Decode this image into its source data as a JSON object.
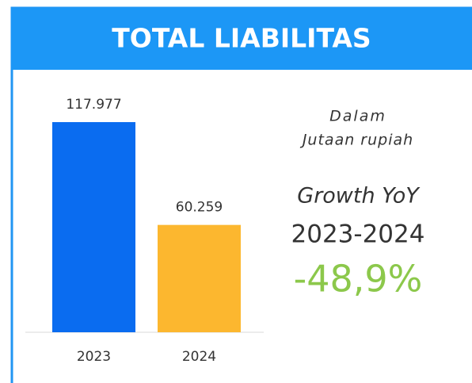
{
  "chart_data": {
    "type": "bar",
    "title": "TOTAL LIABILITAS",
    "categories": [
      "2023",
      "2024"
    ],
    "values": [
      117977,
      60259
    ],
    "value_labels": [
      "117.977",
      "60.259"
    ],
    "colors": [
      "#0a6cf0",
      "#fcb72f"
    ],
    "annotations": [
      "Dalam",
      "Jutaan rupiah",
      "Growth YoY",
      "2023-2024",
      "-48,9%"
    ]
  }
}
